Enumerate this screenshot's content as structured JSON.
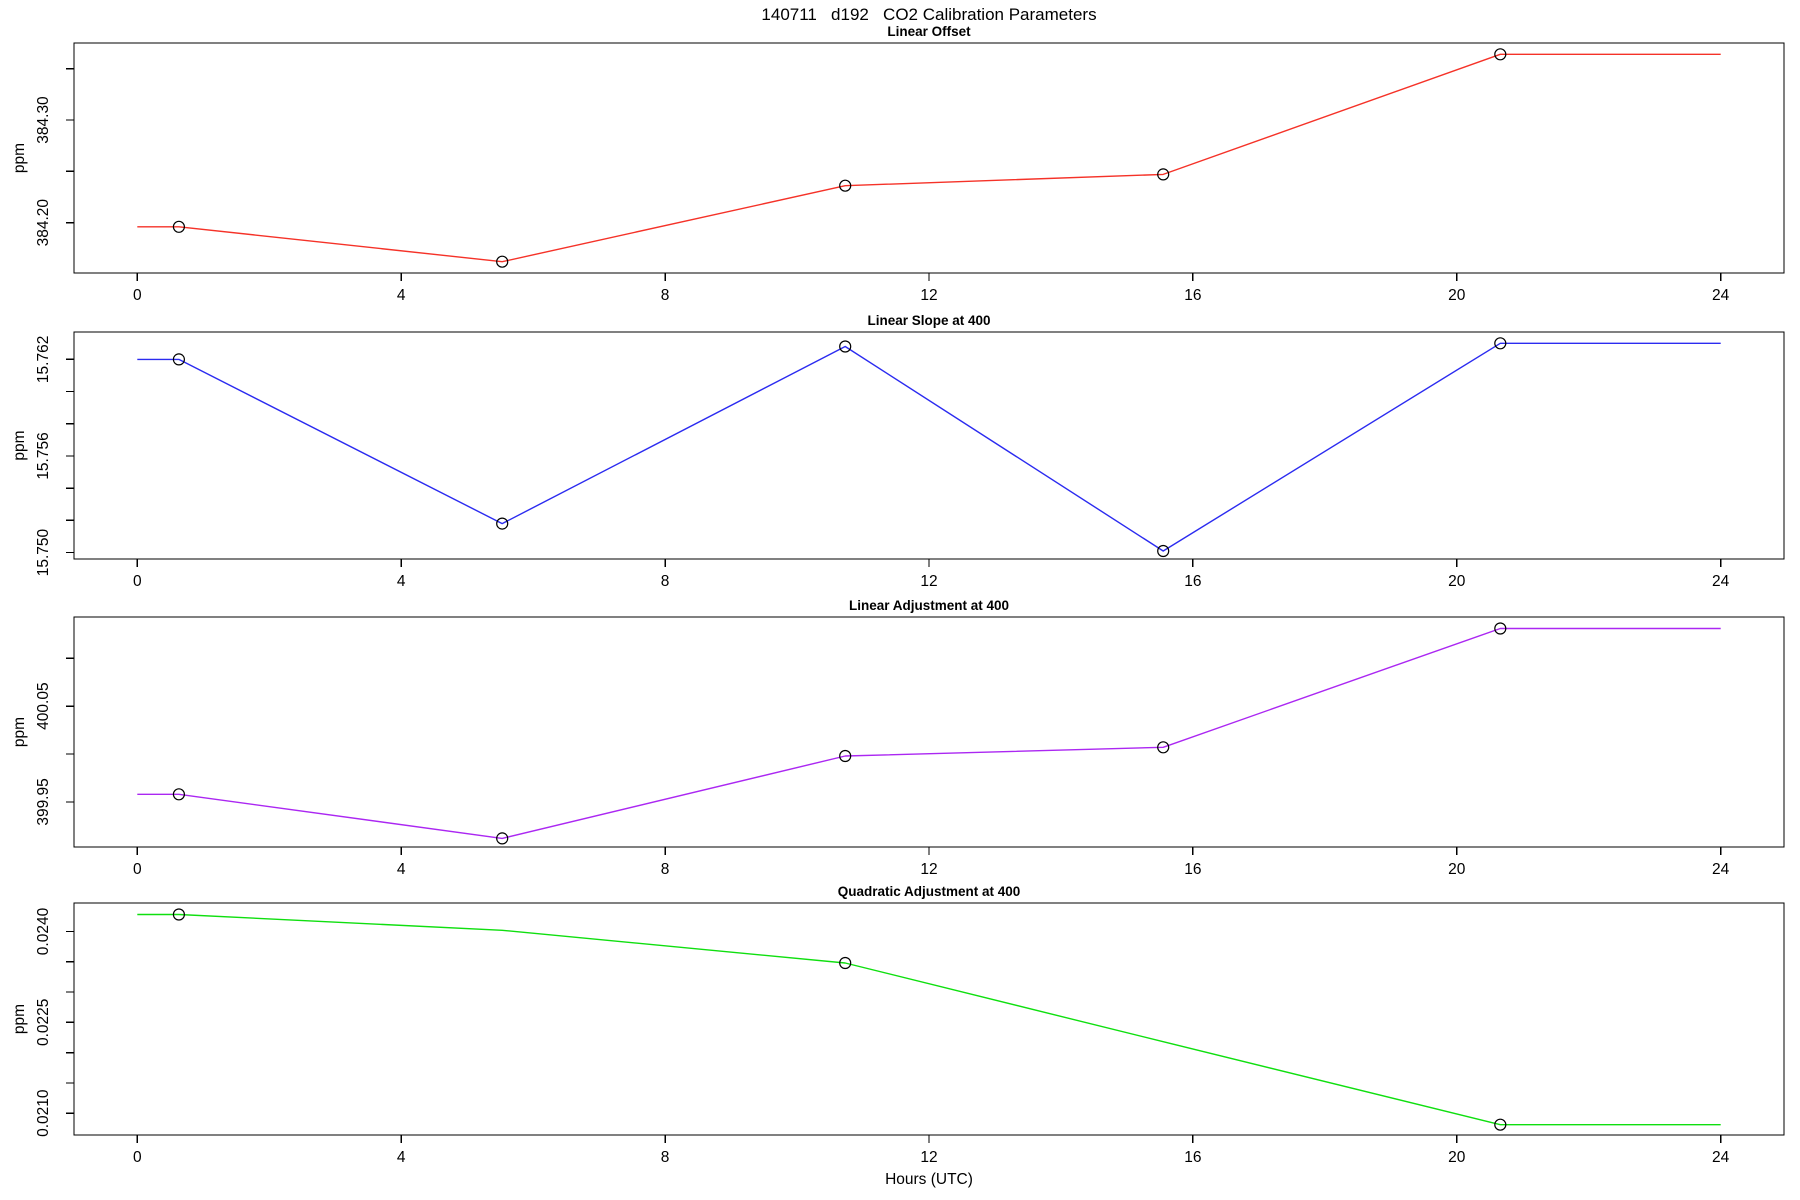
{
  "main_title": "140711   d192   CO2 Calibration Parameters",
  "x_axis": {
    "label": "Hours (UTC)",
    "ticks": [
      0,
      4,
      8,
      12,
      16,
      20,
      24
    ],
    "lim": [
      -0.96,
      24.96
    ]
  },
  "chart_data": [
    {
      "type": "line",
      "title": "Linear Offset",
      "ylabel": "ppm",
      "color": "#f53228",
      "ylim": [
        384.151,
        384.375
      ],
      "y_ticks": [
        384.2,
        384.25,
        384.3,
        384.35
      ],
      "y_tick_labels": [
        "384.20",
        "",
        "384.30",
        ""
      ],
      "x": [
        0,
        0.63,
        5.53,
        10.73,
        15.55,
        20.66,
        24
      ],
      "y": [
        384.196,
        384.196,
        384.162,
        384.236,
        384.247,
        384.364,
        384.364
      ],
      "markers": [
        0,
        1,
        1,
        1,
        1,
        1,
        0
      ],
      "legend": "none",
      "grid": false
    },
    {
      "type": "line",
      "title": "Linear Slope at 400",
      "ylabel": "ppm",
      "color": "#2b2bf0",
      "ylim": [
        15.7496,
        15.7637
      ],
      "y_ticks": [
        15.75,
        15.752,
        15.754,
        15.756,
        15.758,
        15.76,
        15.762
      ],
      "y_tick_labels": [
        "15.750",
        "",
        "",
        "15.756",
        "",
        "",
        "15.762"
      ],
      "x": [
        0,
        0.63,
        5.53,
        10.73,
        15.55,
        20.66,
        24
      ],
      "y": [
        15.762,
        15.762,
        15.7518,
        15.7628,
        15.7501,
        15.763,
        15.763
      ],
      "markers": [
        0,
        1,
        1,
        1,
        1,
        1,
        0
      ],
      "legend": "none",
      "grid": false
    },
    {
      "type": "line",
      "title": "Linear Adjustment at 400",
      "ylabel": "ppm",
      "color": "#ab27f2",
      "ylim": [
        399.903,
        400.143
      ],
      "y_ticks": [
        399.95,
        400.0,
        400.05,
        400.1
      ],
      "y_tick_labels": [
        "399.95",
        "",
        "400.05",
        ""
      ],
      "x": [
        0,
        0.63,
        5.53,
        10.73,
        15.55,
        20.66,
        24
      ],
      "y": [
        399.958,
        399.958,
        399.912,
        399.998,
        400.007,
        400.131,
        400.131
      ],
      "markers": [
        0,
        1,
        1,
        1,
        1,
        1,
        0
      ],
      "legend": "none",
      "grid": false
    },
    {
      "type": "line",
      "title": "Quadratic Adjustment at 400",
      "ylabel": "ppm",
      "color": "#0fdf0f",
      "ylim": [
        0.02064,
        0.02447
      ],
      "y_ticks": [
        0.021,
        0.0215,
        0.022,
        0.0225,
        0.023,
        0.0235,
        0.024
      ],
      "y_tick_labels": [
        "0.0210",
        "",
        "",
        "0.0225",
        "",
        "",
        "0.0240"
      ],
      "x": [
        0,
        0.63,
        5.53,
        10.73,
        15.55,
        20.66,
        24
      ],
      "y": [
        0.02428,
        0.02428,
        0.02402,
        0.02348,
        0.02218,
        0.02081,
        0.02081
      ],
      "markers": [
        0,
        1,
        0,
        1,
        0,
        1,
        0
      ],
      "legend": "none",
      "grid": false
    }
  ]
}
